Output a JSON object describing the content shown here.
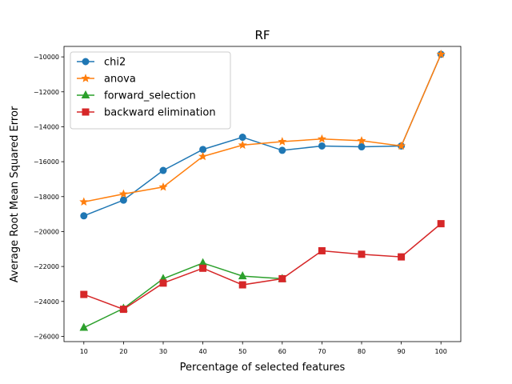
{
  "chart_data": {
    "type": "line",
    "title": "RF",
    "xlabel": "Percentage of selected features",
    "ylabel": "Average Root Mean Squared Error",
    "x": [
      10,
      20,
      30,
      40,
      50,
      60,
      70,
      80,
      90,
      100
    ],
    "x_ticks": [
      "10",
      "20",
      "30",
      "40",
      "50",
      "60",
      "70",
      "80",
      "90",
      "100"
    ],
    "xlim": [
      5,
      105
    ],
    "ylim": [
      -26300,
      -9400
    ],
    "y_ticks": [
      -26000,
      -24000,
      -22000,
      -20000,
      -18000,
      -16000,
      -14000,
      -12000,
      -10000
    ],
    "y_tick_labels": [
      "−26000",
      "−24000",
      "−22000",
      "−20000",
      "−18000",
      "−16000",
      "−14000",
      "−12000",
      "−10000"
    ],
    "grid": false,
    "legend_position": "upper-left",
    "series": [
      {
        "name": "chi2",
        "color": "#1f77b4",
        "marker": "circle",
        "values": [
          -19100,
          -18200,
          -16500,
          -15300,
          -14600,
          -15350,
          -15100,
          -15150,
          -15100,
          -9850
        ]
      },
      {
        "name": "anova",
        "color": "#ff7f0e",
        "marker": "star",
        "values": [
          -18300,
          -17850,
          -17450,
          -15700,
          -15050,
          -14850,
          -14700,
          -14800,
          -15100,
          -9850
        ]
      },
      {
        "name": "forward_selection",
        "color": "#2ca02c",
        "marker": "triangle",
        "values": [
          -25500,
          -24400,
          -22700,
          -21800,
          -22550,
          -22700,
          null,
          null,
          null,
          null
        ]
      },
      {
        "name": "backward elimination",
        "color": "#d62728",
        "marker": "square",
        "values": [
          -23600,
          -24450,
          -22950,
          -22100,
          -23050,
          -22700,
          -21100,
          -21300,
          -21450,
          -19550
        ]
      }
    ]
  }
}
